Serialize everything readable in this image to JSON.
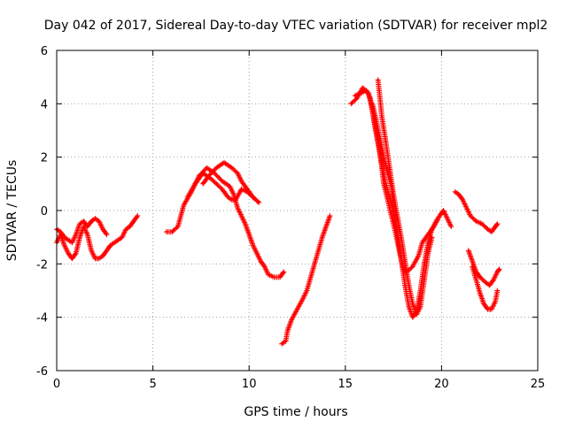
{
  "chart_data": {
    "type": "scatter",
    "title": "Day 042 of 2017, Sidereal Day-to-day VTEC variation (SDTVAR) for receiver mpl2",
    "xlabel": "GPS time / hours",
    "ylabel": "SDTVAR / TECUs",
    "xlim": [
      0,
      25
    ],
    "ylim": [
      -6,
      6
    ],
    "xticks": [
      0,
      5,
      10,
      15,
      20,
      25
    ],
    "yticks": [
      -6,
      -4,
      -2,
      0,
      2,
      4,
      6
    ],
    "xtick_labels": [
      "0",
      "5",
      "10",
      "15",
      "20",
      "25"
    ],
    "ytick_labels": [
      "-6",
      "-4",
      "-2",
      "0",
      "2",
      "4",
      "6"
    ],
    "grid": true,
    "grid_style": "dotted",
    "marker": "plus",
    "color": "#ff0000",
    "series": [
      {
        "points": [
          [
            0.0,
            -1.2
          ],
          [
            0.2,
            -0.9
          ],
          [
            0.4,
            -1.3
          ],
          [
            0.6,
            -1.6
          ],
          [
            0.8,
            -1.8
          ],
          [
            1.0,
            -1.6
          ],
          [
            1.2,
            -1.0
          ],
          [
            1.4,
            -0.6
          ],
          [
            1.6,
            -0.9
          ],
          [
            1.8,
            -1.5
          ],
          [
            2.0,
            -1.8
          ],
          [
            2.2,
            -1.8
          ],
          [
            2.4,
            -1.7
          ],
          [
            2.6,
            -1.5
          ],
          [
            2.8,
            -1.3
          ],
          [
            3.0,
            -1.2
          ],
          [
            3.2,
            -1.1
          ],
          [
            3.4,
            -1.0
          ],
          [
            3.6,
            -0.7
          ],
          [
            3.8,
            -0.6
          ],
          [
            4.0,
            -0.4
          ],
          [
            4.2,
            -0.2
          ]
        ]
      },
      {
        "points": [
          [
            0.0,
            -0.7
          ],
          [
            0.2,
            -0.8
          ],
          [
            0.4,
            -1.0
          ],
          [
            0.6,
            -1.1
          ],
          [
            0.8,
            -1.2
          ],
          [
            1.0,
            -0.9
          ],
          [
            1.2,
            -0.5
          ],
          [
            1.4,
            -0.4
          ],
          [
            1.6,
            -0.6
          ],
          [
            1.8,
            -0.4
          ],
          [
            2.0,
            -0.3
          ],
          [
            2.2,
            -0.4
          ],
          [
            2.4,
            -0.7
          ],
          [
            2.6,
            -0.9
          ]
        ]
      },
      {
        "points": [
          [
            5.7,
            -0.8
          ],
          [
            6.0,
            -0.8
          ],
          [
            6.3,
            -0.6
          ],
          [
            6.6,
            0.2
          ],
          [
            7.0,
            0.7
          ],
          [
            7.4,
            1.3
          ],
          [
            7.8,
            1.6
          ],
          [
            8.2,
            1.4
          ],
          [
            8.6,
            1.1
          ],
          [
            9.0,
            0.9
          ],
          [
            9.2,
            0.6
          ],
          [
            9.4,
            0.1
          ],
          [
            9.6,
            -0.2
          ],
          [
            9.8,
            -0.5
          ],
          [
            10.0,
            -0.9
          ],
          [
            10.2,
            -1.3
          ],
          [
            10.4,
            -1.6
          ],
          [
            10.6,
            -1.9
          ],
          [
            10.8,
            -2.1
          ],
          [
            11.0,
            -2.4
          ],
          [
            11.3,
            -2.5
          ],
          [
            11.6,
            -2.5
          ],
          [
            11.8,
            -2.3
          ]
        ]
      },
      {
        "points": [
          [
            6.8,
            0.5
          ],
          [
            7.2,
            1.0
          ],
          [
            7.6,
            1.4
          ],
          [
            8.0,
            1.2
          ],
          [
            8.3,
            1.0
          ],
          [
            8.6,
            0.8
          ],
          [
            8.9,
            0.5
          ],
          [
            9.1,
            0.4
          ],
          [
            9.3,
            0.4
          ],
          [
            9.6,
            0.8
          ],
          [
            9.9,
            0.7
          ],
          [
            10.2,
            0.5
          ],
          [
            10.5,
            0.3
          ]
        ]
      },
      {
        "points": [
          [
            7.6,
            1.0
          ],
          [
            7.9,
            1.3
          ],
          [
            8.3,
            1.6
          ],
          [
            8.7,
            1.8
          ],
          [
            9.1,
            1.6
          ],
          [
            9.4,
            1.4
          ],
          [
            9.6,
            1.1
          ],
          [
            9.9,
            0.8
          ],
          [
            10.2,
            0.5
          ],
          [
            10.5,
            0.3
          ]
        ]
      },
      {
        "points": [
          [
            11.7,
            -5.0
          ],
          [
            11.9,
            -4.9
          ],
          [
            12.0,
            -4.5
          ],
          [
            12.2,
            -4.1
          ],
          [
            12.5,
            -3.7
          ],
          [
            12.8,
            -3.3
          ],
          [
            13.0,
            -3.0
          ],
          [
            13.2,
            -2.5
          ],
          [
            13.4,
            -2.0
          ],
          [
            13.6,
            -1.5
          ],
          [
            13.8,
            -1.0
          ],
          [
            14.0,
            -0.6
          ],
          [
            14.2,
            -0.2
          ]
        ]
      },
      {
        "points": [
          [
            15.3,
            4.0
          ],
          [
            15.6,
            4.2
          ],
          [
            15.9,
            4.6
          ],
          [
            16.2,
            4.4
          ],
          [
            16.4,
            3.8
          ],
          [
            16.6,
            3.0
          ],
          [
            16.8,
            2.2
          ],
          [
            17.0,
            1.0
          ],
          [
            17.2,
            0.4
          ],
          [
            17.4,
            -0.2
          ],
          [
            17.6,
            -0.8
          ],
          [
            17.8,
            -1.5
          ],
          [
            18.0,
            -2.2
          ],
          [
            18.2,
            -2.3
          ],
          [
            18.5,
            -2.1
          ],
          [
            18.8,
            -1.7
          ],
          [
            19.0,
            -1.2
          ],
          [
            19.3,
            -0.9
          ],
          [
            19.6,
            -0.6
          ],
          [
            19.9,
            -0.2
          ],
          [
            20.1,
            0.0
          ],
          [
            20.3,
            -0.3
          ],
          [
            20.5,
            -0.6
          ]
        ]
      },
      {
        "points": [
          [
            15.5,
            4.3
          ],
          [
            15.8,
            4.4
          ],
          [
            16.1,
            4.5
          ],
          [
            16.3,
            4.2
          ],
          [
            16.5,
            3.3
          ],
          [
            16.7,
            2.5
          ],
          [
            16.9,
            1.7
          ],
          [
            17.1,
            1.0
          ],
          [
            17.3,
            0.5
          ],
          [
            17.5,
            0.0
          ],
          [
            17.7,
            -0.9
          ],
          [
            17.9,
            -1.8
          ],
          [
            18.1,
            -2.8
          ],
          [
            18.3,
            -3.6
          ],
          [
            18.5,
            -4.0
          ],
          [
            18.7,
            -3.8
          ],
          [
            18.9,
            -3.0
          ],
          [
            19.1,
            -2.0
          ],
          [
            19.3,
            -1.2
          ],
          [
            19.5,
            -0.7
          ],
          [
            19.8,
            -0.3
          ]
        ]
      },
      {
        "points": [
          [
            16.4,
            4.0
          ],
          [
            16.6,
            3.4
          ],
          [
            16.8,
            2.7
          ],
          [
            17.0,
            2.0
          ],
          [
            17.2,
            1.4
          ],
          [
            17.4,
            0.9
          ],
          [
            17.5,
            0.2
          ]
        ]
      },
      {
        "points": [
          [
            16.7,
            4.9
          ],
          [
            16.9,
            3.5
          ],
          [
            17.1,
            2.6
          ],
          [
            17.3,
            1.6
          ],
          [
            17.5,
            0.6
          ],
          [
            17.7,
            -0.2
          ],
          [
            17.9,
            -1.0
          ],
          [
            18.1,
            -1.9
          ],
          [
            18.3,
            -2.8
          ],
          [
            18.5,
            -3.5
          ],
          [
            18.7,
            -3.9
          ],
          [
            18.9,
            -3.6
          ],
          [
            19.1,
            -2.6
          ],
          [
            19.3,
            -1.6
          ],
          [
            19.5,
            -1.0
          ]
        ]
      },
      {
        "points": [
          [
            20.7,
            0.7
          ],
          [
            20.9,
            0.6
          ],
          [
            21.1,
            0.4
          ],
          [
            21.3,
            0.1
          ],
          [
            21.5,
            -0.2
          ],
          [
            21.8,
            -0.4
          ],
          [
            22.1,
            -0.5
          ],
          [
            22.4,
            -0.7
          ],
          [
            22.6,
            -0.8
          ],
          [
            22.8,
            -0.6
          ],
          [
            22.9,
            -0.5
          ]
        ]
      },
      {
        "points": [
          [
            21.4,
            -1.5
          ],
          [
            21.6,
            -1.9
          ],
          [
            21.8,
            -2.3
          ],
          [
            22.0,
            -2.5
          ],
          [
            22.3,
            -2.7
          ],
          [
            22.5,
            -2.8
          ],
          [
            22.7,
            -2.6
          ],
          [
            22.9,
            -2.3
          ],
          [
            23.0,
            -2.2
          ]
        ]
      },
      {
        "points": [
          [
            21.6,
            -2.1
          ],
          [
            21.8,
            -2.6
          ],
          [
            22.0,
            -3.1
          ],
          [
            22.2,
            -3.5
          ],
          [
            22.4,
            -3.7
          ],
          [
            22.6,
            -3.7
          ],
          [
            22.8,
            -3.4
          ],
          [
            22.9,
            -3.0
          ]
        ]
      }
    ]
  }
}
